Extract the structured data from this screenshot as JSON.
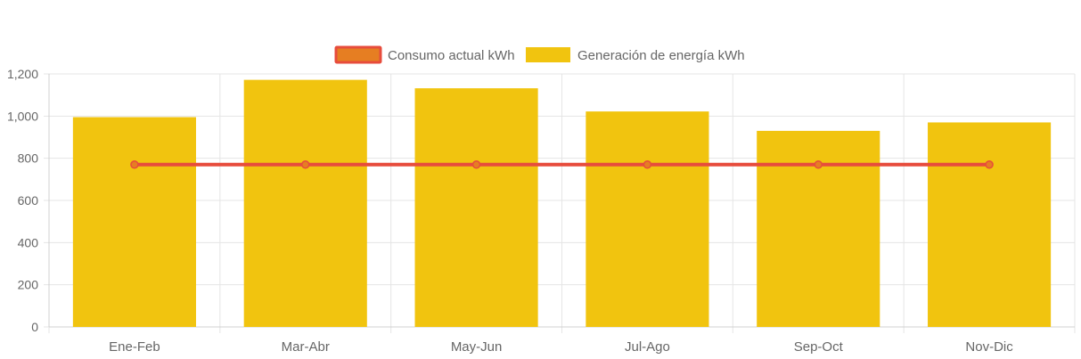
{
  "chart_data": {
    "type": "bar",
    "categories": [
      "Ene-Feb",
      "Mar-Abr",
      "May-Jun",
      "Jul-Ago",
      "Sep-Oct",
      "Nov-Dic"
    ],
    "series": [
      {
        "name": "Consumo actual kWh",
        "type": "line",
        "values": [
          770,
          770,
          770,
          770,
          770,
          770
        ],
        "color": "#e74c3c",
        "fill_color": "#e67e22"
      },
      {
        "name": "Generación de energía kWh",
        "type": "bar",
        "values": [
          995,
          1172,
          1132,
          1022,
          930,
          970
        ],
        "color": "#f1c40f"
      }
    ],
    "ylim": [
      0,
      1200
    ],
    "y_ticks": [
      "0",
      "200",
      "400",
      "600",
      "800",
      "1,000",
      "1,200"
    ],
    "y_tick_values": [
      0,
      200,
      400,
      600,
      800,
      1000,
      1200
    ],
    "grid": true,
    "legend_position": "top-center"
  }
}
